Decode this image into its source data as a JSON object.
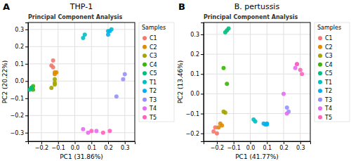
{
  "chart_data": [
    {
      "type": "scatter",
      "title": "THP-1",
      "subtitle": "Principal Component Analysis",
      "annotations": [
        "A"
      ],
      "xlabel": "PC1 (31.86%)",
      "ylabel": "PC2 (20.22%)",
      "xlim": [
        -0.28,
        0.36
      ],
      "ylim": [
        -0.35,
        0.34
      ],
      "xticks": [
        {
          "value": -0.2,
          "label": "−0.2"
        },
        {
          "value": -0.1,
          "label": "−0.1"
        },
        {
          "value": 0.0,
          "label": "0.0"
        },
        0.1,
        0.2,
        0.3
      ],
      "yticks": [
        {
          "value": -0.3,
          "label": "−0.3"
        },
        {
          "value": -0.2,
          "label": "−0.2"
        },
        {
          "value": -0.1,
          "label": "−0.1"
        },
        {
          "value": 0.0,
          "label": "0.0"
        },
        0.1,
        0.2,
        0.3
      ],
      "grid": true,
      "legend": "right",
      "legend_title": "Samples",
      "marker": "circle",
      "series": [
        {
          "name": "C1",
          "color": "#F8766D",
          "x": [
            -0.13,
            -0.13,
            -0.14
          ],
          "values": [
            0.12,
            0.08,
            0.09
          ]
        },
        {
          "name": "C2",
          "color": "#E08B00",
          "x": [
            -0.12,
            -0.11,
            -0.12
          ],
          "values": [
            0.05,
            0.05,
            0.04
          ]
        },
        {
          "name": "C3",
          "color": "#A3A500",
          "x": [
            -0.12,
            -0.12,
            -0.12,
            -0.14
          ],
          "values": [
            0.01,
            -0.01,
            -0.02,
            -0.04
          ]
        },
        {
          "name": "C4",
          "color": "#39B600",
          "x": [
            -0.25,
            -0.26,
            -0.25
          ],
          "values": [
            -0.03,
            -0.04,
            -0.05
          ]
        },
        {
          "name": "C5",
          "color": "#00BF7D",
          "x": [
            -0.26,
            -0.27
          ],
          "values": [
            -0.04,
            -0.05
          ]
        },
        {
          "name": "T1",
          "color": "#00BFC4",
          "x": [
            0.05,
            0.06,
            0.2,
            0.22
          ],
          "values": [
            0.25,
            0.27,
            0.29,
            0.3
          ]
        },
        {
          "name": "T2",
          "color": "#00B0F6",
          "x": [
            0.2,
            0.21
          ],
          "values": [
            0.27,
            0.29
          ]
        },
        {
          "name": "T3",
          "color": "#9590FF",
          "x": [
            0.3,
            0.29,
            0.25
          ],
          "values": [
            0.04,
            0.01,
            -0.09
          ]
        },
        {
          "name": "T4",
          "color": "#E76BF3",
          "x": [
            0.05,
            0.08,
            0.13
          ],
          "values": [
            -0.28,
            -0.3,
            -0.29
          ]
        },
        {
          "name": "T5",
          "color": "#FF62BC",
          "x": [
            0.1,
            0.17,
            0.21
          ],
          "values": [
            -0.29,
            -0.3,
            -0.29
          ]
        }
      ]
    },
    {
      "type": "scatter",
      "title": "B. pertussis",
      "subtitle": "Principal Component Analysis",
      "annotations": [
        "B"
      ],
      "xlabel": "PC1 (41.77%)",
      "ylabel": "PC2 (13.46%)",
      "xlim": [
        -0.28,
        0.36
      ],
      "ylim": [
        -0.24,
        0.36
      ],
      "xticks": [
        {
          "value": -0.2,
          "label": "−0.2"
        },
        {
          "value": -0.1,
          "label": "−0.1"
        },
        {
          "value": 0.0,
          "label": "0.0"
        },
        0.1,
        0.2,
        0.3
      ],
      "yticks": [
        {
          "value": -0.2,
          "label": "−0.2"
        },
        {
          "value": -0.1,
          "label": "−0.1"
        },
        {
          "value": 0.0,
          "label": "0.0"
        },
        0.1,
        0.2,
        0.3
      ],
      "grid": true,
      "legend": "right",
      "legend_title": "Samples",
      "marker": "circle",
      "series": [
        {
          "name": "C1",
          "color": "#F8766D",
          "x": [
            -0.22,
            -0.2,
            -0.21
          ],
          "values": [
            -0.19,
            -0.2,
            -0.17
          ]
        },
        {
          "name": "C2",
          "color": "#E08B00",
          "x": [
            -0.18,
            -0.17,
            -0.19
          ],
          "values": [
            -0.15,
            -0.16,
            -0.17
          ]
        },
        {
          "name": "C3",
          "color": "#A3A500",
          "x": [
            -0.16,
            -0.15
          ],
          "values": [
            -0.09,
            -0.095
          ]
        },
        {
          "name": "C4",
          "color": "#39B600",
          "x": [
            -0.16,
            -0.14
          ],
          "values": [
            0.13,
            0.05
          ]
        },
        {
          "name": "C5",
          "color": "#00BF7D",
          "x": [
            -0.15,
            -0.14,
            -0.13
          ],
          "values": [
            0.31,
            0.32,
            0.33
          ]
        },
        {
          "name": "T1",
          "color": "#00BFC4",
          "x": [
            0.02,
            0.03,
            0.09,
            0.1
          ],
          "values": [
            -0.13,
            -0.14,
            -0.155,
            -0.15
          ]
        },
        {
          "name": "T2",
          "color": "#00B0F6",
          "x": [
            0.08,
            0.1
          ],
          "values": [
            -0.15,
            -0.155
          ]
        },
        {
          "name": "T3",
          "color": "#9590FF",
          "x": [
            0.22,
            0.23
          ],
          "values": [
            -0.07,
            -0.09
          ]
        },
        {
          "name": "T4",
          "color": "#E76BF3",
          "x": [
            0.2,
            0.22,
            0.27,
            0.28
          ],
          "values": [
            0.0,
            -0.1,
            0.13,
            0.15
          ]
        },
        {
          "name": "T5",
          "color": "#FF62BC",
          "x": [
            0.28,
            0.3,
            0.31
          ],
          "values": [
            0.15,
            0.12,
            0.1
          ]
        }
      ]
    }
  ]
}
